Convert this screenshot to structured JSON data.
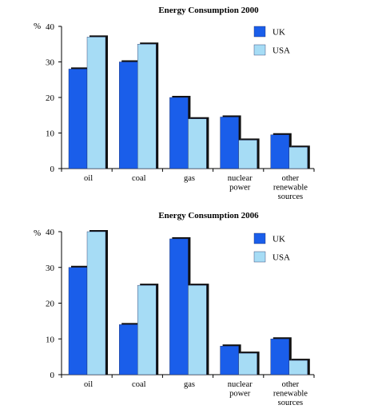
{
  "colors": {
    "uk": "#1a5eea",
    "usa": "#a6dcf5",
    "shadow": "#111111"
  },
  "chart_data": [
    {
      "type": "bar",
      "title": "Energy Consumption 2000",
      "ylabel": "%",
      "ylim": [
        0,
        40
      ],
      "yticks": [
        0,
        10,
        20,
        30,
        40
      ],
      "categories": [
        "oil",
        "coal",
        "gas",
        "nuclear|power",
        "other|renewable|sources"
      ],
      "series": [
        {
          "name": "UK",
          "values": [
            28,
            30,
            20,
            14.5,
            9.5
          ]
        },
        {
          "name": "USA",
          "values": [
            37,
            35,
            14,
            8,
            6
          ]
        }
      ],
      "legend": "top-right",
      "grid": false
    },
    {
      "type": "bar",
      "title": "Energy Consumption 2006",
      "ylabel": "%",
      "ylim": [
        0,
        40
      ],
      "yticks": [
        0,
        10,
        20,
        30,
        40
      ],
      "categories": [
        "oil",
        "coal",
        "gas",
        "nuclear|power",
        "other|renewable|sources"
      ],
      "series": [
        {
          "name": "UK",
          "values": [
            30,
            14,
            38,
            8,
            10
          ]
        },
        {
          "name": "USA",
          "values": [
            40,
            25,
            25,
            6,
            4
          ]
        }
      ],
      "legend": "top-right",
      "grid": false
    }
  ]
}
